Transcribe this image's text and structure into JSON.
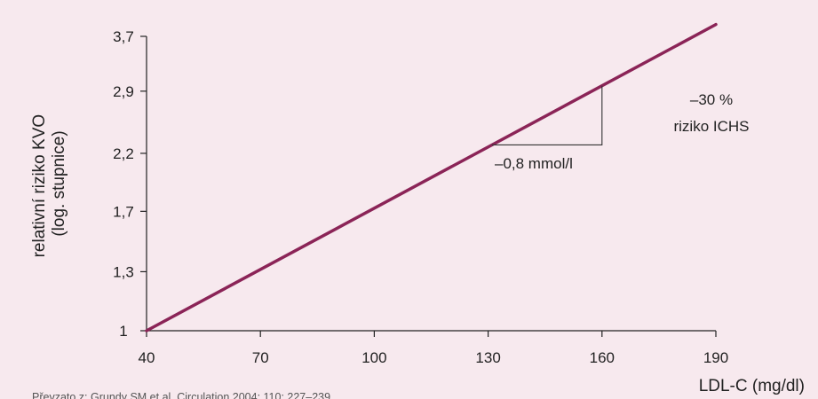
{
  "colors": {
    "background": "#f7e9ee",
    "line": "#8b2457",
    "axis": "#222222",
    "helper": "#333333"
  },
  "chart_data": {
    "type": "line",
    "title": "",
    "xlabel": "LDL-C (mg/dl)",
    "ylabel_lines": [
      "relativní riziko KVO",
      "(log. stupnice)"
    ],
    "y_scale": "log",
    "xlim": [
      40,
      190
    ],
    "ylim": [
      1,
      3.7
    ],
    "x_ticks": [
      40,
      70,
      100,
      130,
      160,
      190
    ],
    "x_tick_labels": [
      "40",
      "70",
      "100",
      "130",
      "160",
      "190"
    ],
    "y_ticks": [
      1,
      1.3,
      1.7,
      2.2,
      2.9,
      3.7
    ],
    "y_tick_labels": [
      "1",
      "1,3",
      "1,7",
      "2,2",
      "2,9",
      "3,7"
    ],
    "grid": false,
    "series": [
      {
        "x": [
          40,
          190
        ],
        "y": [
          1,
          3.9
        ]
      }
    ],
    "step_marker": {
      "x_from": 131,
      "x_to": 160
    },
    "annotations": [
      {
        "text": "–0,8 mmol/l"
      },
      {
        "text": "–30 %"
      },
      {
        "text": "riziko ICHS"
      }
    ],
    "source": "Převzato z: Grundy SM et al. Circulation 2004; 110: 227–239"
  }
}
